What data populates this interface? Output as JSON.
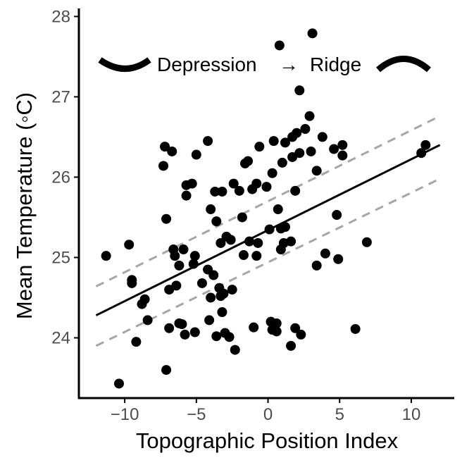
{
  "chart_data": {
    "type": "scatter",
    "title": "",
    "xlabel": "Topographic Position Index",
    "ylabel": "Mean Temperature (◦C)",
    "xlim": [
      -13.2,
      13.0
    ],
    "ylim": [
      23.25,
      28.1
    ],
    "xticks": [
      -10,
      -5,
      0,
      5,
      10
    ],
    "yticks": [
      24,
      25,
      26,
      27,
      28
    ],
    "xtick_labels": [
      "−10",
      "−5",
      "0",
      "5",
      "10"
    ],
    "ytick_labels": [
      "24",
      "25",
      "26",
      "27",
      "28"
    ],
    "grid": false,
    "legend": "none",
    "annotations": {
      "left_text": "Depression",
      "arrow": "→",
      "right_text": "Ridge",
      "left_icon": "valley-curve",
      "right_icon": "ridge-curve"
    },
    "fit_line": {
      "x": [
        -12,
        12
      ],
      "y": [
        24.28,
        26.4
      ]
    },
    "confidence_band": {
      "upper": {
        "x": [
          -12,
          12
        ],
        "y": [
          24.64,
          26.76
        ]
      },
      "lower": {
        "x": [
          -12,
          12
        ],
        "y": [
          23.9,
          25.98
        ]
      }
    },
    "points": [
      {
        "x": -11.3,
        "y": 25.02
      },
      {
        "x": -10.4,
        "y": 23.43
      },
      {
        "x": -9.7,
        "y": 25.16
      },
      {
        "x": -9.5,
        "y": 24.72
      },
      {
        "x": -9.5,
        "y": 24.68
      },
      {
        "x": -9.2,
        "y": 23.95
      },
      {
        "x": -8.8,
        "y": 24.42
      },
      {
        "x": -8.6,
        "y": 24.48
      },
      {
        "x": -8.4,
        "y": 24.22
      },
      {
        "x": -7.3,
        "y": 26.14
      },
      {
        "x": -7.2,
        "y": 26.38
      },
      {
        "x": -7.1,
        "y": 25.48
      },
      {
        "x": -7.1,
        "y": 23.6
      },
      {
        "x": -6.9,
        "y": 24.6
      },
      {
        "x": -6.9,
        "y": 24.12
      },
      {
        "x": -6.7,
        "y": 26.32
      },
      {
        "x": -6.6,
        "y": 25.1
      },
      {
        "x": -6.5,
        "y": 25.02
      },
      {
        "x": -6.4,
        "y": 24.65
      },
      {
        "x": -6.2,
        "y": 24.9
      },
      {
        "x": -6.2,
        "y": 24.18
      },
      {
        "x": -6.0,
        "y": 24.17
      },
      {
        "x": -5.9,
        "y": 25.1
      },
      {
        "x": -5.8,
        "y": 24.04
      },
      {
        "x": -5.7,
        "y": 25.77
      },
      {
        "x": -5.7,
        "y": 25.9
      },
      {
        "x": -5.3,
        "y": 25.92
      },
      {
        "x": -5.2,
        "y": 24.92
      },
      {
        "x": -5.1,
        "y": 25.02
      },
      {
        "x": -5.1,
        "y": 24.07
      },
      {
        "x": -5.0,
        "y": 26.28
      },
      {
        "x": -4.6,
        "y": 24.68
      },
      {
        "x": -4.2,
        "y": 26.45
      },
      {
        "x": -4.2,
        "y": 24.85
      },
      {
        "x": -4.1,
        "y": 24.22
      },
      {
        "x": -4.0,
        "y": 25.6
      },
      {
        "x": -4.0,
        "y": 24.5
      },
      {
        "x": -3.8,
        "y": 24.78
      },
      {
        "x": -3.7,
        "y": 25.82
      },
      {
        "x": -3.6,
        "y": 25.45
      },
      {
        "x": -3.6,
        "y": 24.02
      },
      {
        "x": -3.4,
        "y": 24.62
      },
      {
        "x": -3.3,
        "y": 25.18
      },
      {
        "x": -3.3,
        "y": 24.52
      },
      {
        "x": -3.2,
        "y": 25.82
      },
      {
        "x": -3.2,
        "y": 24.32
      },
      {
        "x": -3.1,
        "y": 24.55
      },
      {
        "x": -3.0,
        "y": 24.06
      },
      {
        "x": -2.9,
        "y": 25.26
      },
      {
        "x": -2.7,
        "y": 24.01
      },
      {
        "x": -2.6,
        "y": 25.22
      },
      {
        "x": -2.5,
        "y": 24.6
      },
      {
        "x": -2.4,
        "y": 25.92
      },
      {
        "x": -2.3,
        "y": 23.85
      },
      {
        "x": -2.0,
        "y": 25.83
      },
      {
        "x": -1.8,
        "y": 25.5
      },
      {
        "x": -1.7,
        "y": 25.03
      },
      {
        "x": -1.6,
        "y": 26.17
      },
      {
        "x": -1.4,
        "y": 26.2
      },
      {
        "x": -1.3,
        "y": 25.2
      },
      {
        "x": -1.1,
        "y": 25.85
      },
      {
        "x": -1.0,
        "y": 24.13
      },
      {
        "x": -0.8,
        "y": 25.92
      },
      {
        "x": -0.8,
        "y": 25.02
      },
      {
        "x": -0.7,
        "y": 25.18
      },
      {
        "x": -0.6,
        "y": 26.38
      },
      {
        "x": -0.1,
        "y": 25.88
      },
      {
        "x": 0.1,
        "y": 25.35
      },
      {
        "x": 0.2,
        "y": 24.2
      },
      {
        "x": 0.3,
        "y": 26.05
      },
      {
        "x": 0.3,
        "y": 24.1
      },
      {
        "x": 0.4,
        "y": 26.45
      },
      {
        "x": 0.6,
        "y": 24.18
      },
      {
        "x": 0.6,
        "y": 24.08
      },
      {
        "x": 0.7,
        "y": 25.6
      },
      {
        "x": 0.8,
        "y": 27.64
      },
      {
        "x": 0.9,
        "y": 25.36
      },
      {
        "x": 0.9,
        "y": 25.1
      },
      {
        "x": 1.0,
        "y": 26.18
      },
      {
        "x": 1.1,
        "y": 25.18
      },
      {
        "x": 1.2,
        "y": 25.38
      },
      {
        "x": 1.2,
        "y": 26.43
      },
      {
        "x": 1.6,
        "y": 25.2
      },
      {
        "x": 1.6,
        "y": 23.9
      },
      {
        "x": 1.7,
        "y": 26.25
      },
      {
        "x": 1.7,
        "y": 26.5
      },
      {
        "x": 1.9,
        "y": 25.83
      },
      {
        "x": 1.9,
        "y": 24.12
      },
      {
        "x": 2.0,
        "y": 26.55
      },
      {
        "x": 2.2,
        "y": 27.08
      },
      {
        "x": 2.2,
        "y": 26.3
      },
      {
        "x": 2.3,
        "y": 24.04
      },
      {
        "x": 2.6,
        "y": 26.6
      },
      {
        "x": 2.9,
        "y": 26.76
      },
      {
        "x": 3.0,
        "y": 26.32
      },
      {
        "x": 3.1,
        "y": 27.79
      },
      {
        "x": 3.4,
        "y": 26.08
      },
      {
        "x": 3.4,
        "y": 24.9
      },
      {
        "x": 3.8,
        "y": 26.5
      },
      {
        "x": 4.0,
        "y": 25.05
      },
      {
        "x": 4.6,
        "y": 26.35
      },
      {
        "x": 4.8,
        "y": 25.53
      },
      {
        "x": 4.9,
        "y": 24.98
      },
      {
        "x": 5.2,
        "y": 26.4
      },
      {
        "x": 5.2,
        "y": 26.27
      },
      {
        "x": 6.1,
        "y": 24.11
      },
      {
        "x": 6.9,
        "y": 25.19
      },
      {
        "x": 10.7,
        "y": 26.3
      },
      {
        "x": 11.0,
        "y": 26.4
      }
    ],
    "colors": {
      "points": "#000000",
      "fit_line": "#000000",
      "confidence": "#a6a6a6",
      "axis": "#000000",
      "tick_label": "#4d4d4d"
    }
  }
}
